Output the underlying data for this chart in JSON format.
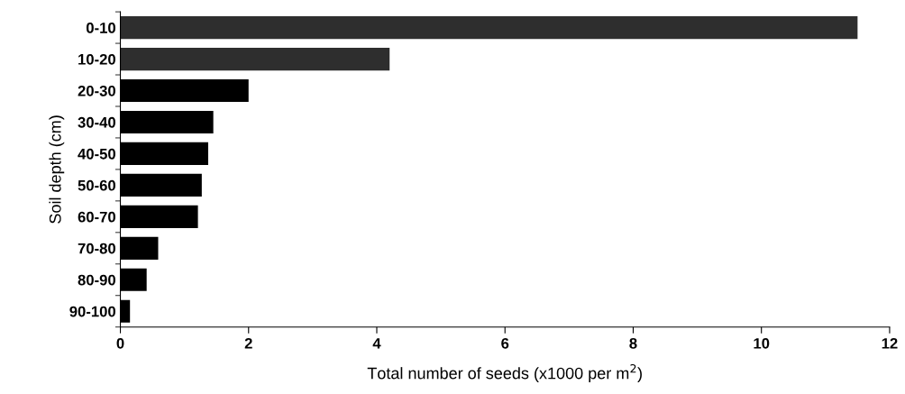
{
  "chart_data": {
    "type": "bar",
    "orientation": "horizontal",
    "categories": [
      "0-10",
      "10-20",
      "20-30",
      "30-40",
      "40-50",
      "50-60",
      "60-70",
      "70-80",
      "80-90",
      "90-100"
    ],
    "values": [
      11.5,
      4.2,
      2.0,
      1.45,
      1.37,
      1.27,
      1.21,
      0.59,
      0.41,
      0.15
    ],
    "colors": [
      "#2e2e2e",
      "#2e2e2e",
      "#000000",
      "#000000",
      "#000000",
      "#000000",
      "#000000",
      "#000000",
      "#000000",
      "#000000"
    ],
    "xlabel": "Total number of seeds (x1000 per m$^{2}$)",
    "ylabel": "Soil depth (cm)",
    "xlim": [
      0,
      12
    ],
    "xticks": [
      0,
      2,
      4,
      6,
      8,
      10,
      12
    ],
    "grid": false,
    "legend": false
  }
}
